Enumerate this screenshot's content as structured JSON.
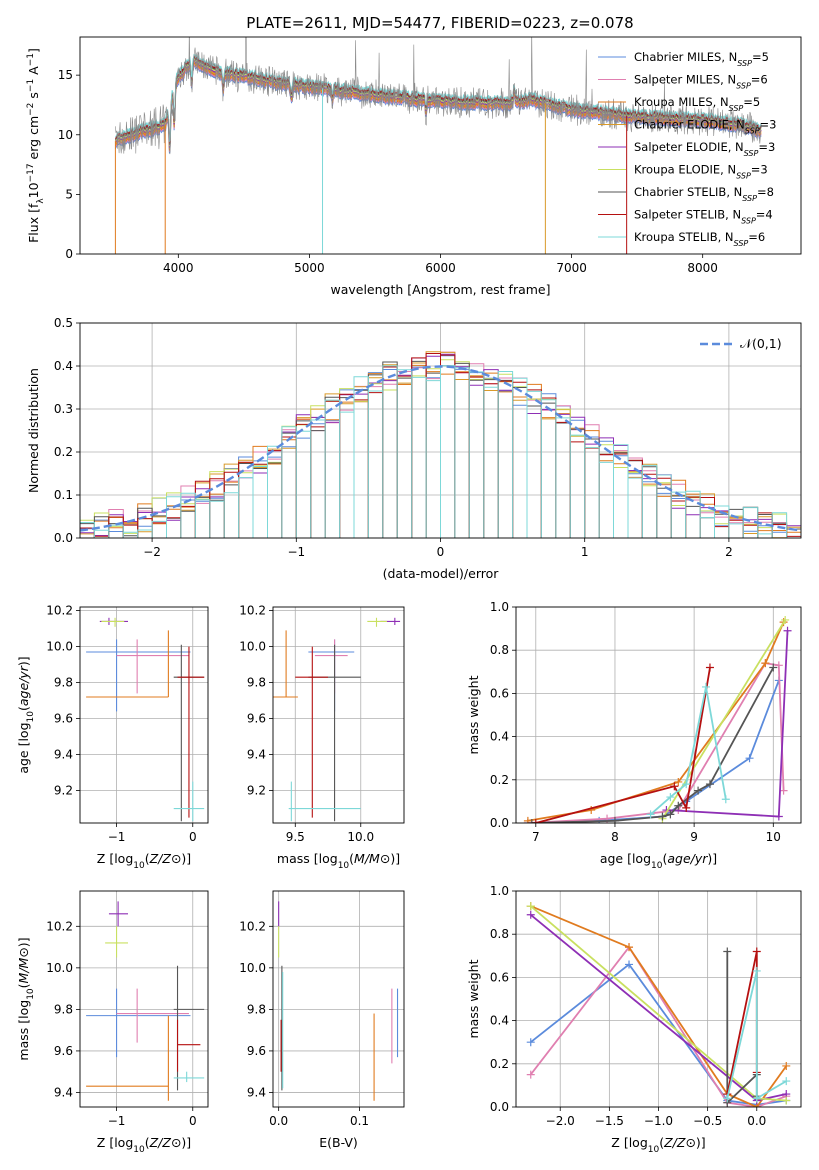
{
  "title": "PLATE=2611, MJD=54477, FIBERID=0223, z=0.078",
  "colors": {
    "Chabrier MILES": "#5b8bdc",
    "Salpeter MILES": "#e07fb0",
    "Kroupa MILES": "#e07b1f",
    "Chabrier ELODIE": "#d99a2a",
    "Salpeter ELODIE": "#8e2fb5",
    "Kroupa ELODIE": "#c9e060",
    "Chabrier STELIB": "#555555",
    "Salpeter STELIB": "#b51010",
    "Kroupa STELIB": "#7dd8d8",
    "data": "#888888"
  },
  "chart_data": [
    {
      "id": "spectrum",
      "type": "line",
      "xlabel": "wavelength [Angstrom, rest frame]",
      "ylabel": "Flux [f_λ10^-17 erg cm^-2 s^-1 A^-1]",
      "xlim": [
        3250,
        8750
      ],
      "ylim": [
        0,
        18.2
      ],
      "xticks": [
        4000,
        5000,
        6000,
        7000,
        8000
      ],
      "yticks": [
        0,
        5,
        10,
        15
      ],
      "legend_position": "top-right",
      "legend": [
        {
          "label": "Chabrier MILES, N",
          "sub": "SSP",
          "eq": "=5"
        },
        {
          "label": "Salpeter MILES, N",
          "sub": "SSP",
          "eq": "=6"
        },
        {
          "label": "Kroupa MILES, N",
          "sub": "SSP",
          "eq": "=5"
        },
        {
          "label": "Chabrier ELODIE, N",
          "sub": "SSP",
          "eq": "=3"
        },
        {
          "label": "Salpeter ELODIE, N",
          "sub": "SSP",
          "eq": "=3"
        },
        {
          "label": "Kroupa ELODIE, N",
          "sub": "SSP",
          "eq": "=3"
        },
        {
          "label": "Chabrier STELIB, N",
          "sub": "SSP",
          "eq": "=8"
        },
        {
          "label": "Salpeter STELIB, N",
          "sub": "SSP",
          "eq": "=4"
        },
        {
          "label": "Kroupa STELIB, N",
          "sub": "SSP",
          "eq": "=6"
        }
      ],
      "continuum": [
        [
          3520,
          9.5
        ],
        [
          3700,
          10.2
        ],
        [
          3900,
          10.8
        ],
        [
          3980,
          14.5
        ],
        [
          4100,
          16.2
        ],
        [
          4300,
          15.3
        ],
        [
          4500,
          14.9
        ],
        [
          4800,
          14.3
        ],
        [
          5000,
          14.0
        ],
        [
          5300,
          13.6
        ],
        [
          5600,
          13.2
        ],
        [
          6000,
          12.8
        ],
        [
          6500,
          12.6
        ],
        [
          6700,
          12.9
        ],
        [
          7000,
          12.1
        ],
        [
          7500,
          11.5
        ],
        [
          8000,
          11.2
        ],
        [
          8300,
          10.8
        ],
        [
          8450,
          10.3
        ]
      ],
      "model_cutoffs": [
        {
          "model": "Kroupa MILES",
          "x": 3900
        },
        {
          "model": "Kroupa STELIB",
          "x": 5100
        },
        {
          "model": "Chabrier ELODIE",
          "x": 6800
        },
        {
          "model": "Salpeter STELIB",
          "x": 7420
        }
      ]
    },
    {
      "id": "residuals",
      "type": "histogram",
      "xlabel": "(data-model)/error",
      "ylabel": "Normed distribution",
      "xlim": [
        -2.5,
        2.5
      ],
      "ylim": [
        0,
        0.5
      ],
      "xticks": [
        -2,
        -1,
        0,
        1,
        2
      ],
      "yticks": [
        0.0,
        0.1,
        0.2,
        0.3,
        0.4,
        0.5
      ],
      "bin_width": 0.1,
      "reference_curve": {
        "label": "𝒩(0,1)",
        "mean": 0,
        "sigma": 1
      }
    },
    {
      "id": "age-vs-Z",
      "type": "scatter",
      "xlabel": "Z [log10(Z/Z⊙)]",
      "ylabel": "age [log10(age/yr)]",
      "xlim": [
        -1.48,
        0.2
      ],
      "ylim": [
        9.02,
        10.22
      ],
      "xticks": [
        -1,
        0
      ],
      "yticks": [
        9.2,
        9.4,
        9.6,
        9.8,
        10.0,
        10.2
      ],
      "points": [
        {
          "model": "Chabrier MILES",
          "x": -1.0,
          "y": 9.97,
          "xlo": -1.4,
          "xhi": -0.03,
          "ylo": 9.64,
          "yhi": 10.04
        },
        {
          "model": "Salpeter MILES",
          "x": -0.73,
          "y": 9.95,
          "xlo": -1.0,
          "xhi": -0.05,
          "ylo": 9.74,
          "yhi": 10.04
        },
        {
          "model": "Kroupa MILES",
          "x": -0.32,
          "y": 9.72,
          "xlo": -1.4,
          "xhi": -0.32,
          "ylo": 9.72,
          "yhi": 10.09
        },
        {
          "model": "Salpeter ELODIE",
          "x": -1.1,
          "y": 10.14,
          "xlo": -1.22,
          "xhi": -0.85,
          "ylo": 10.12,
          "yhi": 10.16
        },
        {
          "model": "Kroupa ELODIE",
          "x": -1.02,
          "y": 10.14,
          "xlo": -1.2,
          "xhi": -0.9,
          "ylo": 10.11,
          "yhi": 10.16
        },
        {
          "model": "Chabrier STELIB",
          "x": -0.15,
          "y": 9.83,
          "xlo": -0.25,
          "xhi": 0.15,
          "ylo": 9.03,
          "yhi": 10.01
        },
        {
          "model": "Salpeter STELIB",
          "x": -0.05,
          "y": 9.83,
          "xlo": -0.2,
          "xhi": 0.15,
          "ylo": 9.05,
          "yhi": 10.0
        },
        {
          "model": "Kroupa STELIB",
          "x": 0.0,
          "y": 9.1,
          "xlo": -0.25,
          "xhi": 0.15,
          "ylo": 9.03,
          "yhi": 9.25
        }
      ]
    },
    {
      "id": "age-vs-mass",
      "type": "scatter",
      "xlabel": "mass [log10(M/M⊙)]",
      "ylabel": "",
      "xlim": [
        9.33,
        10.33
      ],
      "ylim": [
        9.02,
        10.22
      ],
      "xticks": [
        9.5,
        10.0
      ],
      "yticks": [
        9.2,
        9.4,
        9.6,
        9.8,
        10.0,
        10.2
      ],
      "points": [
        {
          "model": "Chabrier MILES",
          "x": 9.8,
          "y": 9.97,
          "xlo": 9.6,
          "xhi": 9.95,
          "ylo": 9.64,
          "yhi": 10.04
        },
        {
          "model": "Salpeter MILES",
          "x": 9.8,
          "y": 9.95,
          "xlo": 9.65,
          "xhi": 9.9,
          "ylo": 9.74,
          "yhi": 10.04
        },
        {
          "model": "Kroupa MILES",
          "x": 9.43,
          "y": 9.72,
          "xlo": 9.3,
          "xhi": 9.52,
          "ylo": 9.72,
          "yhi": 10.09
        },
        {
          "model": "Salpeter ELODIE",
          "x": 10.26,
          "y": 10.14,
          "xlo": 10.15,
          "xhi": 10.3,
          "ylo": 10.12,
          "yhi": 10.16
        },
        {
          "model": "Kroupa ELODIE",
          "x": 10.12,
          "y": 10.14,
          "xlo": 10.05,
          "xhi": 10.2,
          "ylo": 10.11,
          "yhi": 10.16
        },
        {
          "model": "Chabrier STELIB",
          "x": 9.8,
          "y": 9.83,
          "xlo": 9.6,
          "xhi": 10.0,
          "ylo": 9.03,
          "yhi": 10.01
        },
        {
          "model": "Salpeter STELIB",
          "x": 9.63,
          "y": 9.83,
          "xlo": 9.5,
          "xhi": 9.75,
          "ylo": 9.05,
          "yhi": 10.0
        },
        {
          "model": "Kroupa STELIB",
          "x": 9.47,
          "y": 9.1,
          "xlo": 9.45,
          "xhi": 10.0,
          "ylo": 9.03,
          "yhi": 9.25
        }
      ]
    },
    {
      "id": "weight-vs-age",
      "type": "line",
      "xlabel": "age [log10(age/yr)]",
      "ylabel": "mass weight",
      "xlim": [
        6.75,
        10.35
      ],
      "ylim": [
        0,
        1.0
      ],
      "xticks": [
        7,
        8,
        9,
        10
      ],
      "yticks": [
        0.0,
        0.2,
        0.4,
        0.6,
        0.8,
        1.0
      ],
      "series": [
        {
          "model": "Chabrier MILES",
          "x": [
            6.9,
            7.8,
            8.6,
            8.9,
            9.7,
            10.07
          ],
          "y": [
            0.0,
            0.01,
            0.03,
            0.1,
            0.3,
            0.66
          ]
        },
        {
          "model": "Salpeter MILES",
          "x": [
            6.9,
            7.9,
            8.8,
            9.9,
            10.07,
            10.13
          ],
          "y": [
            0.0,
            0.02,
            0.06,
            0.74,
            0.73,
            0.15
          ]
        },
        {
          "model": "Kroupa MILES",
          "x": [
            6.9,
            7.7,
            8.8,
            9.9,
            10.13
          ],
          "y": [
            0.01,
            0.06,
            0.19,
            0.74,
            0.93
          ]
        },
        {
          "model": "Salpeter ELODIE",
          "x": [
            8.65,
            10.07,
            10.18
          ],
          "y": [
            0.06,
            0.03,
            0.89
          ]
        },
        {
          "model": "Kroupa ELODIE",
          "x": [
            8.6,
            10.15
          ],
          "y": [
            0.02,
            0.94
          ]
        },
        {
          "model": "Chabrier STELIB",
          "x": [
            6.95,
            8.0,
            8.6,
            8.7,
            8.8,
            9.05,
            9.2,
            10.0
          ],
          "y": [
            0.0,
            0.01,
            0.03,
            0.04,
            0.08,
            0.15,
            0.18,
            0.72
          ]
        },
        {
          "model": "Salpeter STELIB",
          "x": [
            7.0,
            8.75,
            8.9,
            9.2
          ],
          "y": [
            0.0,
            0.17,
            0.07,
            0.72
          ]
        },
        {
          "model": "Kroupa STELIB",
          "x": [
            8.45,
            8.7,
            8.9,
            9.15,
            9.4
          ],
          "y": [
            0.04,
            0.12,
            0.18,
            0.63,
            0.11
          ]
        }
      ]
    },
    {
      "id": "mass-vs-Z",
      "type": "scatter",
      "xlabel": "Z [log10(Z/Z⊙)]",
      "ylabel": "mass [log10(M/M⊙)]",
      "xlim": [
        -1.48,
        0.2
      ],
      "ylim": [
        9.33,
        10.37
      ],
      "xticks": [
        -1,
        0
      ],
      "yticks": [
        9.4,
        9.6,
        9.8,
        10.0,
        10.2
      ],
      "points": [
        {
          "model": "Chabrier MILES",
          "x": -1.0,
          "y": 9.77,
          "xlo": -1.4,
          "xhi": -0.03,
          "ylo": 9.57,
          "yhi": 9.9
        },
        {
          "model": "Salpeter MILES",
          "x": -0.73,
          "y": 9.78,
          "xlo": -1.0,
          "xhi": -0.05,
          "ylo": 9.64,
          "yhi": 9.9
        },
        {
          "model": "Kroupa MILES",
          "x": -0.32,
          "y": 9.43,
          "xlo": -1.4,
          "xhi": -0.32,
          "ylo": 9.36,
          "yhi": 9.77
        },
        {
          "model": "Salpeter ELODIE",
          "x": -0.98,
          "y": 10.26,
          "xlo": -1.1,
          "xhi": -0.85,
          "ylo": 10.2,
          "yhi": 10.32
        },
        {
          "model": "Kroupa ELODIE",
          "x": -1.0,
          "y": 10.12,
          "xlo": -1.15,
          "xhi": -0.85,
          "ylo": 10.05,
          "yhi": 10.2
        },
        {
          "model": "Chabrier STELIB",
          "x": -0.2,
          "y": 9.8,
          "xlo": -0.25,
          "xhi": 0.15,
          "ylo": 9.41,
          "yhi": 10.01
        },
        {
          "model": "Salpeter STELIB",
          "x": -0.2,
          "y": 9.63,
          "xlo": -0.2,
          "xhi": 0.1,
          "ylo": 9.5,
          "yhi": 9.75
        },
        {
          "model": "Kroupa STELIB",
          "x": -0.08,
          "y": 9.47,
          "xlo": -0.25,
          "xhi": 0.15,
          "ylo": 9.45,
          "yhi": 9.5
        }
      ]
    },
    {
      "id": "mass-vs-EBV",
      "type": "scatter",
      "xlabel": "E(B-V)",
      "ylabel": "",
      "xlim": [
        -0.007,
        0.155
      ],
      "ylim": [
        9.33,
        10.37
      ],
      "xticks": [
        0.0,
        0.1
      ],
      "yticks": [
        9.4,
        9.6,
        9.8,
        10.0,
        10.2
      ],
      "points": [
        {
          "model": "Chabrier MILES",
          "x": 0.147,
          "y": 9.77,
          "ylo": 9.57,
          "yhi": 9.9
        },
        {
          "model": "Salpeter MILES",
          "x": 0.14,
          "y": 9.78,
          "ylo": 9.54,
          "yhi": 9.9
        },
        {
          "model": "Kroupa MILES",
          "x": 0.118,
          "y": 9.6,
          "ylo": 9.36,
          "yhi": 9.78
        },
        {
          "model": "Salpeter ELODIE",
          "x": 0.0,
          "y": 10.26,
          "ylo": 10.2,
          "yhi": 10.32
        },
        {
          "model": "Kroupa ELODIE",
          "x": 0.0,
          "y": 10.12,
          "ylo": 10.05,
          "yhi": 10.2
        },
        {
          "model": "Chabrier STELIB",
          "x": 0.004,
          "y": 9.8,
          "ylo": 9.41,
          "yhi": 10.01
        },
        {
          "model": "Salpeter STELIB",
          "x": 0.003,
          "y": 9.63,
          "ylo": 9.5,
          "yhi": 9.75
        },
        {
          "model": "Kroupa STELIB",
          "x": 0.005,
          "y": 9.47,
          "ylo": 9.42,
          "yhi": 9.98
        }
      ]
    },
    {
      "id": "weight-vs-Z",
      "type": "line",
      "xlabel": "Z [log10(Z/Z⊙)]",
      "ylabel": "mass weight",
      "xlim": [
        -2.45,
        0.45
      ],
      "ylim": [
        0,
        1.0
      ],
      "xticks": [
        -2.0,
        -1.5,
        -1.0,
        -0.5,
        0.0
      ],
      "yticks": [
        0.0,
        0.2,
        0.4,
        0.6,
        0.8,
        1.0
      ],
      "series": [
        {
          "model": "Chabrier MILES",
          "x": [
            -2.3,
            -1.3,
            -0.3,
            0.0,
            0.3
          ],
          "y": [
            0.3,
            0.66,
            0.03,
            0.01,
            0.03
          ]
        },
        {
          "model": "Salpeter MILES",
          "x": [
            -2.3,
            -1.3,
            -0.3,
            0.0,
            0.3
          ],
          "y": [
            0.15,
            0.74,
            0.02,
            0.0,
            0.05
          ]
        },
        {
          "model": "Kroupa MILES",
          "x": [
            -2.3,
            -1.3,
            -0.3,
            0.0,
            0.3
          ],
          "y": [
            0.93,
            0.74,
            0.06,
            0.0,
            0.19
          ]
        },
        {
          "model": "Salpeter ELODIE",
          "x": [
            -2.3,
            0.0,
            0.3
          ],
          "y": [
            0.89,
            0.03,
            0.06
          ]
        },
        {
          "model": "Kroupa ELODIE",
          "x": [
            -2.3,
            0.0,
            0.3
          ],
          "y": [
            0.93,
            0.04,
            0.03
          ]
        },
        {
          "model": "Chabrier STELIB",
          "x": [
            -0.3,
            -0.3,
            0.0,
            0.0
          ],
          "y": [
            0.72,
            0.02,
            0.15,
            0.05
          ]
        },
        {
          "model": "Salpeter STELIB",
          "x": [
            -0.3,
            0.0,
            0.0
          ],
          "y": [
            0.06,
            0.72,
            0.16
          ]
        },
        {
          "model": "Kroupa STELIB",
          "x": [
            -0.3,
            0.0,
            0.0,
            0.3
          ],
          "y": [
            0.04,
            0.63,
            0.04,
            0.12
          ]
        }
      ]
    }
  ]
}
